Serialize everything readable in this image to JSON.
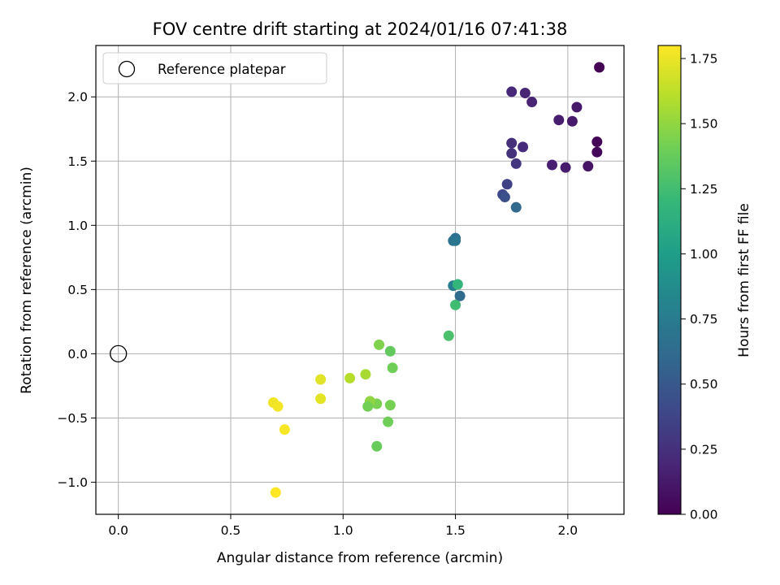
{
  "chart_data": {
    "type": "scatter",
    "title": "FOV centre drift starting at 2024/01/16 07:41:38",
    "xlabel": "Angular distance from reference (arcmin)",
    "ylabel": "Rotation from reference (arcmin)",
    "xlim": [
      -0.1,
      2.25
    ],
    "ylim": [
      -1.25,
      2.4
    ],
    "x_ticks": [
      0.0,
      0.5,
      1.0,
      1.5,
      2.0
    ],
    "x_tick_labels": [
      "0.0",
      "0.5",
      "1.0",
      "1.5",
      "2.0"
    ],
    "y_ticks": [
      -1.0,
      -0.5,
      0.0,
      0.5,
      1.0,
      1.5,
      2.0
    ],
    "y_tick_labels": [
      "−1.0",
      "−0.5",
      "0.0",
      "0.5",
      "1.0",
      "1.5",
      "2.0"
    ],
    "grid": true,
    "legend": {
      "position": "top-left",
      "entries": [
        {
          "label": "Reference platepar",
          "marker": "open-circle",
          "x": 0.0,
          "y": 0.0
        }
      ]
    },
    "colorbar": {
      "label": "Hours from first FF file",
      "colormap": "viridis",
      "range": [
        0.0,
        1.8
      ],
      "ticks": [
        0.0,
        0.25,
        0.5,
        0.75,
        1.0,
        1.25,
        1.5,
        1.75
      ],
      "tick_labels": [
        "0.00",
        "0.25",
        "0.50",
        "0.75",
        "1.00",
        "1.25",
        "1.50",
        "1.75"
      ]
    },
    "points": [
      {
        "x": 2.14,
        "y": 2.23,
        "c": 0.0
      },
      {
        "x": 2.13,
        "y": 1.65,
        "c": 0.02
      },
      {
        "x": 2.13,
        "y": 1.57,
        "c": 0.03
      },
      {
        "x": 2.09,
        "y": 1.46,
        "c": 0.1
      },
      {
        "x": 1.99,
        "y": 1.45,
        "c": 0.14
      },
      {
        "x": 1.93,
        "y": 1.47,
        "c": 0.16
      },
      {
        "x": 2.04,
        "y": 1.92,
        "c": 0.12
      },
      {
        "x": 2.02,
        "y": 1.81,
        "c": 0.13
      },
      {
        "x": 1.96,
        "y": 1.82,
        "c": 0.15
      },
      {
        "x": 1.84,
        "y": 1.96,
        "c": 0.18
      },
      {
        "x": 1.81,
        "y": 2.03,
        "c": 0.19
      },
      {
        "x": 1.75,
        "y": 2.04,
        "c": 0.2
      },
      {
        "x": 1.8,
        "y": 1.61,
        "c": 0.22
      },
      {
        "x": 1.75,
        "y": 1.64,
        "c": 0.24
      },
      {
        "x": 1.75,
        "y": 1.56,
        "c": 0.26
      },
      {
        "x": 1.77,
        "y": 1.48,
        "c": 0.28
      },
      {
        "x": 1.73,
        "y": 1.32,
        "c": 0.36
      },
      {
        "x": 1.71,
        "y": 1.24,
        "c": 0.4
      },
      {
        "x": 1.72,
        "y": 1.22,
        "c": 0.44
      },
      {
        "x": 1.77,
        "y": 1.14,
        "c": 0.6
      },
      {
        "x": 1.5,
        "y": 0.9,
        "c": 0.66
      },
      {
        "x": 1.49,
        "y": 0.88,
        "c": 0.68
      },
      {
        "x": 1.5,
        "y": 0.88,
        "c": 0.7
      },
      {
        "x": 1.52,
        "y": 0.45,
        "c": 0.62
      },
      {
        "x": 1.49,
        "y": 0.53,
        "c": 0.76
      },
      {
        "x": 1.51,
        "y": 0.54,
        "c": 1.18
      },
      {
        "x": 1.5,
        "y": 0.38,
        "c": 1.24
      },
      {
        "x": 1.47,
        "y": 0.14,
        "c": 1.28
      },
      {
        "x": 1.16,
        "y": 0.07,
        "c": 1.45
      },
      {
        "x": 1.21,
        "y": 0.02,
        "c": 1.36
      },
      {
        "x": 1.22,
        "y": -0.11,
        "c": 1.4
      },
      {
        "x": 1.21,
        "y": -0.4,
        "c": 1.42
      },
      {
        "x": 1.2,
        "y": -0.53,
        "c": 1.4
      },
      {
        "x": 1.15,
        "y": -0.39,
        "c": 1.43
      },
      {
        "x": 1.12,
        "y": -0.37,
        "c": 1.5
      },
      {
        "x": 1.11,
        "y": -0.41,
        "c": 1.41
      },
      {
        "x": 1.1,
        "y": -0.16,
        "c": 1.56
      },
      {
        "x": 1.15,
        "y": -0.72,
        "c": 1.38
      },
      {
        "x": 1.03,
        "y": -0.19,
        "c": 1.6
      },
      {
        "x": 0.9,
        "y": -0.2,
        "c": 1.72
      },
      {
        "x": 0.9,
        "y": -0.35,
        "c": 1.73
      },
      {
        "x": 0.69,
        "y": -0.38,
        "c": 1.76
      },
      {
        "x": 0.71,
        "y": -0.41,
        "c": 1.77
      },
      {
        "x": 0.74,
        "y": -0.59,
        "c": 1.78
      },
      {
        "x": 0.7,
        "y": -1.08,
        "c": 1.8
      }
    ]
  }
}
